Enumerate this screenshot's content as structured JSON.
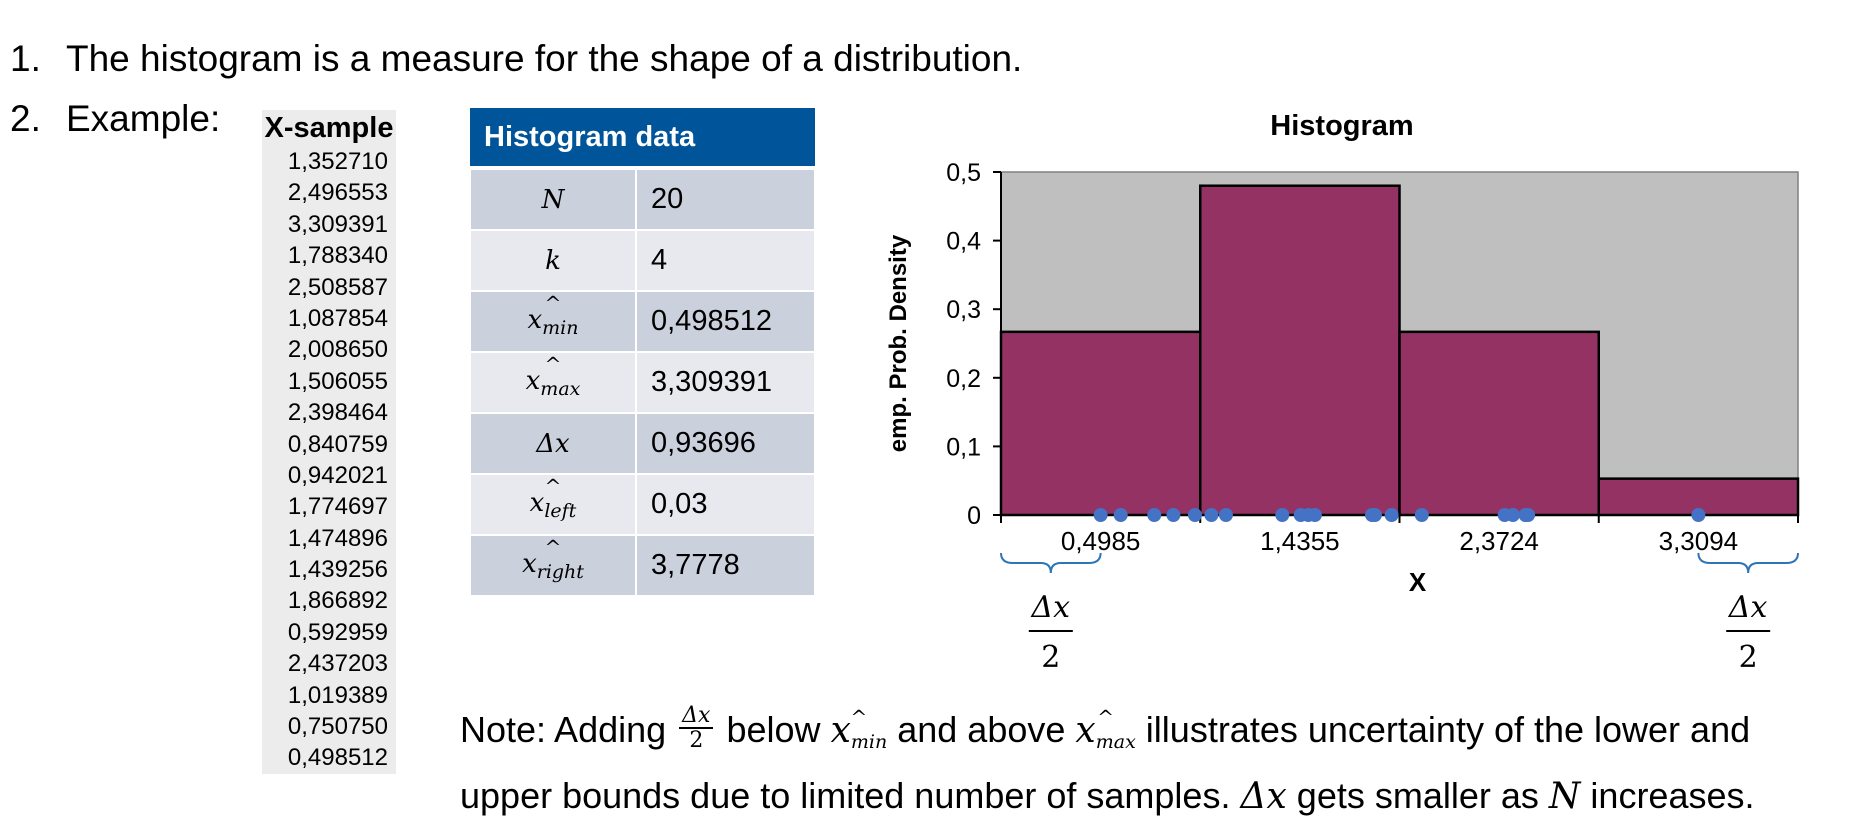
{
  "bullets": [
    {
      "num": "1.",
      "text": "The histogram is a measure for the shape of a distribution."
    },
    {
      "num": "2.",
      "text": "Example:"
    }
  ],
  "sample_table": {
    "header": "X-sample",
    "values": [
      "1,352710",
      "2,496553",
      "3,309391",
      "1,788340",
      "2,508587",
      "1,087854",
      "2,008650",
      "1,506055",
      "2,398464",
      "0,840759",
      "0,942021",
      "1,774697",
      "1,474896",
      "1,439256",
      "1,866892",
      "0,592959",
      "2,437203",
      "1,019389",
      "0,750750",
      "0,498512"
    ]
  },
  "histogram_table": {
    "title": "Histogram data",
    "rows": [
      {
        "symbol": "N",
        "value": "20"
      },
      {
        "symbol": "k",
        "value": "4"
      },
      {
        "symbol": "x",
        "sub": "min",
        "value": "0,498512"
      },
      {
        "symbol": "x",
        "sub": "max",
        "value": "3,309391"
      },
      {
        "symbol": "Δx",
        "value": "0,93696"
      },
      {
        "symbol": "x",
        "sub": "left",
        "value": "0,03"
      },
      {
        "symbol": "x",
        "sub": "right",
        "value": "3,7778"
      }
    ]
  },
  "chart_data": {
    "type": "bar",
    "title": "Histogram",
    "xlabel": "X",
    "ylabel": "emp. Prob. Density",
    "categories": [
      "0,4985",
      "1,4355",
      "2,3724",
      "3,3094"
    ],
    "values": [
      0.267,
      0.48,
      0.267,
      0.053
    ],
    "ylim": [
      0,
      0.5
    ],
    "yticks": [
      "0",
      "0,1",
      "0,2",
      "0,3",
      "0,4",
      "0,5"
    ],
    "x_range": [
      0.03,
      3.7778
    ],
    "bin_edges": [
      0.03,
      0.96696,
      1.90392,
      2.84088,
      3.7778
    ],
    "sample_points": [
      1.35271,
      2.496553,
      3.309391,
      1.78834,
      2.508587,
      1.087854,
      2.00865,
      1.506055,
      2.398464,
      0.840759,
      0.942021,
      1.774697,
      1.474896,
      1.439256,
      1.866892,
      0.592959,
      2.437203,
      1.019389,
      0.75075,
      0.498512
    ],
    "annotations": [
      "Δx",
      "2"
    ],
    "colors": {
      "bar": "#943264",
      "plot_bg": "#bfbfbf",
      "points": "#4472c4",
      "brace": "#2e75b6"
    }
  },
  "note": {
    "prefix": "Note: Adding",
    "frac_top": "Δx",
    "frac_bottom": "2",
    "below": "below",
    "and_above": "and above",
    "x_sym": "x",
    "sub_min": "min",
    "sub_max": "max",
    "rest_line1": "illustrates uncertainty of the lower and",
    "line2_a": "upper bounds due to limited number of samples.",
    "dx_sym": "Δx",
    "line2_b": "gets smaller as",
    "n_sym": "N",
    "line2_c": "increases."
  }
}
